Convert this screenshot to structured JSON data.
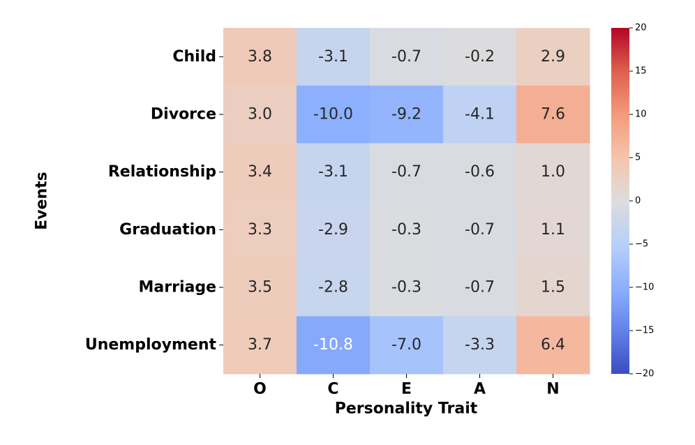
{
  "chart_data": {
    "type": "heatmap",
    "x_label": "Personality Trait",
    "y_label": "Events",
    "categories": [
      "O",
      "C",
      "E",
      "A",
      "N"
    ],
    "rows": [
      "Child",
      "Divorce",
      "Relationship",
      "Graduation",
      "Marriage",
      "Unemployment"
    ],
    "values": [
      [
        3.8,
        -3.1,
        -0.7,
        -0.2,
        2.9
      ],
      [
        3.0,
        -10.0,
        -9.2,
        -4.1,
        7.6
      ],
      [
        3.4,
        -3.1,
        -0.7,
        -0.6,
        1.0
      ],
      [
        3.3,
        -2.9,
        -0.3,
        -0.7,
        1.1
      ],
      [
        3.5,
        -2.8,
        -0.3,
        -0.7,
        1.5
      ],
      [
        3.7,
        -10.8,
        -7.0,
        -3.3,
        6.4
      ]
    ],
    "value_labels": [
      [
        "3.8",
        "-3.1",
        "-0.7",
        "-0.2",
        "2.9"
      ],
      [
        "3.0",
        "-10.0",
        "-9.2",
        "-4.1",
        "7.6"
      ],
      [
        "3.4",
        "-3.1",
        "-0.7",
        "-0.6",
        "1.0"
      ],
      [
        "3.3",
        "-2.9",
        "-0.3",
        "-0.7",
        "1.1"
      ],
      [
        "3.5",
        "-2.8",
        "-0.3",
        "-0.7",
        "1.5"
      ],
      [
        "3.7",
        "-10.8",
        "-7.0",
        "-3.3",
        "6.4"
      ]
    ],
    "colormap": "coolwarm",
    "colorbar_lim": [
      -20,
      20
    ],
    "colorbar_ticks": [
      {
        "value": -20,
        "label": "−20"
      },
      {
        "value": -15,
        "label": "−15"
      },
      {
        "value": -10,
        "label": "−10"
      },
      {
        "value": -5,
        "label": "−5"
      },
      0,
      5,
      10,
      15,
      20
    ]
  }
}
